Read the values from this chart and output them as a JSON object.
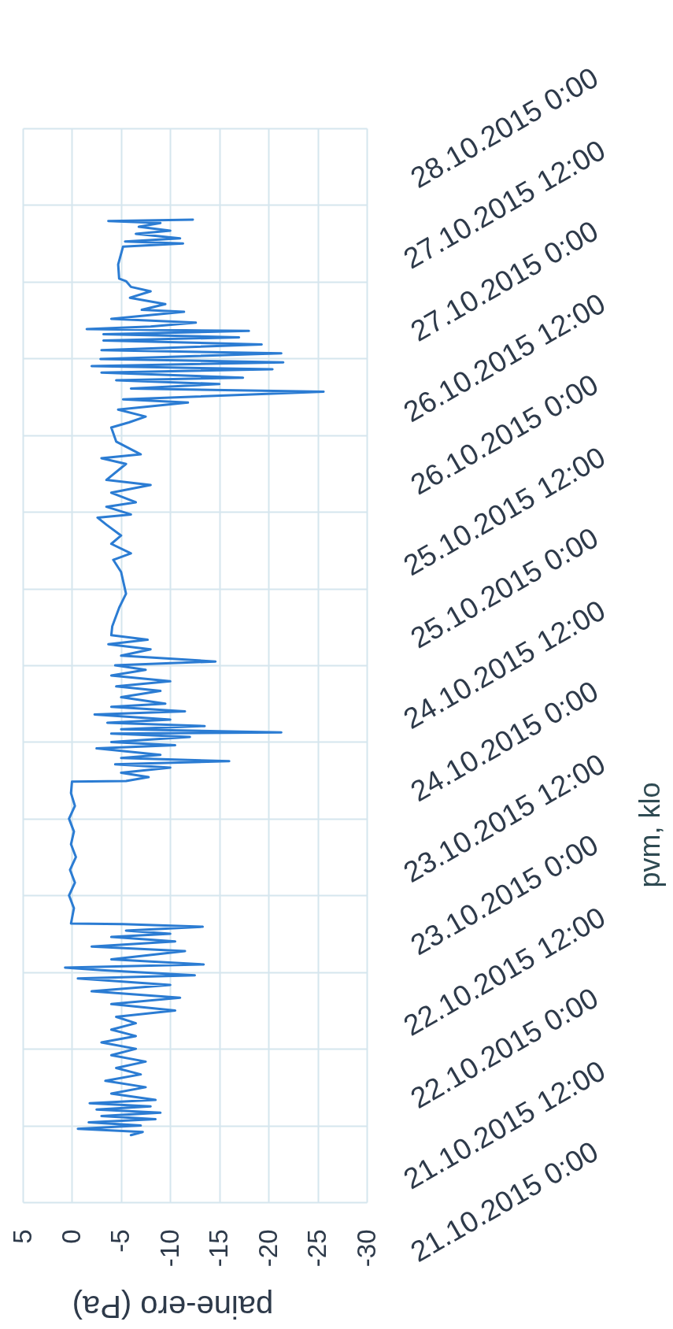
{
  "chart_data": {
    "type": "line",
    "orientation": "horizontal",
    "xlabel": "paine-ero (Pa)",
    "ylabel": "pvm, klo",
    "ylim": [
      "2015-10-21T00:00",
      "2015-10-28T00:00"
    ],
    "yticks": [
      {
        "value": "2015-10-21T00:00",
        "label": "21.10.2015 0:00"
      },
      {
        "value": "2015-10-21T12:00",
        "label": "21.10.2015 12:00"
      },
      {
        "value": "2015-10-22T00:00",
        "label": "22.10.2015 0:00"
      },
      {
        "value": "2015-10-22T12:00",
        "label": "22.10.2015 12:00"
      },
      {
        "value": "2015-10-23T00:00",
        "label": "23.10.2015 0:00"
      },
      {
        "value": "2015-10-23T12:00",
        "label": "23.10.2015 12:00"
      },
      {
        "value": "2015-10-24T00:00",
        "label": "24.10.2015 0:00"
      },
      {
        "value": "2015-10-24T12:00",
        "label": "24.10.2015 12:00"
      },
      {
        "value": "2015-10-25T00:00",
        "label": "25.10.2015 0:00"
      },
      {
        "value": "2015-10-25T12:00",
        "label": "25.10.2015 12:00"
      },
      {
        "value": "2015-10-26T00:00",
        "label": "26.10.2015 0:00"
      },
      {
        "value": "2015-10-26T12:00",
        "label": "26.10.2015 12:00"
      },
      {
        "value": "2015-10-27T00:00",
        "label": "27.10.2015 0:00"
      },
      {
        "value": "2015-10-27T12:00",
        "label": "27.10.2015 12:00"
      },
      {
        "value": "2015-10-28T00:00",
        "label": "28.10.2015 0:00"
      }
    ],
    "xlim": [
      5,
      -30
    ],
    "xticks": [
      5,
      0,
      -5,
      -10,
      -15,
      -20,
      -25,
      -30
    ],
    "grid": true,
    "x": [
      "2015-10-21T10:30",
      "2015-10-21T11:00",
      "2015-10-21T11:30",
      "2015-10-21T12:00",
      "2015-10-21T12:30",
      "2015-10-21T13:00",
      "2015-10-21T13:30",
      "2015-10-21T14:00",
      "2015-10-21T14:30",
      "2015-10-21T15:00",
      "2015-10-21T15:30",
      "2015-10-21T16:00",
      "2015-10-21T17:00",
      "2015-10-21T18:00",
      "2015-10-21T19:00",
      "2015-10-21T20:00",
      "2015-10-21T21:00",
      "2015-10-21T22:00",
      "2015-10-21T23:00",
      "2015-10-22T00:00",
      "2015-10-22T01:00",
      "2015-10-22T02:00",
      "2015-10-22T03:00",
      "2015-10-22T04:00",
      "2015-10-22T05:00",
      "2015-10-22T06:00",
      "2015-10-22T07:00",
      "2015-10-22T08:00",
      "2015-10-22T09:00",
      "2015-10-22T10:00",
      "2015-10-22T11:00",
      "2015-10-22T11:30",
      "2015-10-22T12:18",
      "2015-10-22T12:42",
      "2015-10-22T13:12",
      "2015-10-22T14:00",
      "2015-10-22T15:18",
      "2015-10-22T16:00",
      "2015-10-22T16:48",
      "2015-10-22T17:30",
      "2015-10-22T18:00",
      "2015-10-22T18:30",
      "2015-10-22T19:06",
      "2015-10-22T19:30",
      "2015-10-22T19:36",
      "2015-10-22T22:00",
      "2015-10-23T00:00",
      "2015-10-23T02:00",
      "2015-10-23T04:00",
      "2015-10-23T06:00",
      "2015-10-23T08:00",
      "2015-10-23T10:00",
      "2015-10-23T12:00",
      "2015-10-23T14:00",
      "2015-10-23T16:00",
      "2015-10-23T17:48",
      "2015-10-23T17:54",
      "2015-10-23T18:30",
      "2015-10-23T19:12",
      "2015-10-23T20:00",
      "2015-10-23T20:30",
      "2015-10-23T21:00",
      "2015-10-23T21:30",
      "2015-10-23T22:00",
      "2015-10-23T23:00",
      "2015-10-23T23:30",
      "2015-10-24T00:00",
      "2015-10-24T00:48",
      "2015-10-24T01:18",
      "2015-10-24T01:30",
      "2015-10-24T02:00",
      "2015-10-24T02:30",
      "2015-10-24T03:00",
      "2015-10-24T03:30",
      "2015-10-24T04:18",
      "2015-10-24T04:48",
      "2015-10-24T05:30",
      "2015-10-24T06:00",
      "2015-10-24T07:00",
      "2015-10-24T08:00",
      "2015-10-24T08:42",
      "2015-10-24T09:30",
      "2015-10-24T10:24",
      "2015-10-24T11:18",
      "2015-10-24T12:00",
      "2015-10-24T12:36",
      "2015-10-24T13:30",
      "2015-10-24T14:30",
      "2015-10-24T15:18",
      "2015-10-24T16:00",
      "2015-10-24T16:42",
      "2015-10-24T18:06",
      "2015-10-24T21:00",
      "2015-10-24T23:12",
      "2015-10-25T02:36",
      "2015-10-25T04:30",
      "2015-10-25T05:30",
      "2015-10-25T07:00",
      "2015-10-25T08:18",
      "2015-10-25T10:00",
      "2015-10-25T11:06",
      "2015-10-25T11:36",
      "2015-10-25T12:48",
      "2015-10-25T13:30",
      "2015-10-25T15:00",
      "2015-10-25T16:12",
      "2015-10-25T17:00",
      "2015-10-25T19:30",
      "2015-10-25T20:24",
      "2015-10-25T21:00",
      "2015-10-25T23:00",
      "2015-10-26T01:12",
      "2015-10-26T02:00",
      "2015-10-26T02:54",
      "2015-10-26T04:00",
      "2015-10-26T05:06",
      "2015-10-26T05:36",
      "2015-10-26T06:48",
      "2015-10-26T07:18",
      "2015-10-26T08:00",
      "2015-10-26T08:36",
      "2015-10-26T09:00",
      "2015-10-26T09:48",
      "2015-10-26T10:18",
      "2015-10-26T10:48",
      "2015-10-26T11:24",
      "2015-10-26T11:54",
      "2015-10-26T12:48",
      "2015-10-26T13:18",
      "2015-10-26T14:12",
      "2015-10-26T14:48",
      "2015-10-26T15:18",
      "2015-10-26T15:48",
      "2015-10-26T16:18",
      "2015-10-26T16:36",
      "2015-10-26T17:00",
      "2015-10-26T17:36",
      "2015-10-26T18:12",
      "2015-10-26T19:18",
      "2015-10-26T19:36",
      "2015-10-26T20:30",
      "2015-10-26T21:30",
      "2015-10-26T22:30",
      "2015-10-26T23:12",
      "2015-10-27T00:06",
      "2015-10-27T00:30",
      "2015-10-27T02:42",
      "2015-10-27T05:30",
      "2015-10-27T06:00",
      "2015-10-27T06:18",
      "2015-10-27T06:48",
      "2015-10-27T07:30",
      "2015-10-27T08:00",
      "2015-10-27T08:36",
      "2015-10-27T09:12",
      "2015-10-27T09:30",
      "2015-10-27T09:42"
    ],
    "series": [
      {
        "color": "#2b7cd3",
        "values": [
          -6,
          -7.2,
          -0.6,
          -7,
          -1.7,
          -8.5,
          -3,
          -9,
          -2.5,
          -8,
          -1.8,
          -8.5,
          -4,
          -7.5,
          -3.4,
          -7,
          -4.5,
          -7.5,
          -4,
          -6.5,
          -3,
          -6.5,
          -4,
          -6.5,
          -4.5,
          -10.5,
          -4,
          -11,
          -2,
          -10,
          -0.6,
          -12.5,
          -3,
          0.7,
          -13.4,
          -4,
          -11.5,
          -2,
          -10.5,
          -4,
          -10,
          -5.5,
          -13.3,
          -5.2,
          0.1,
          -0.2,
          0.3,
          -0.3,
          0.2,
          -0.4,
          0.1,
          -0.2,
          0.3,
          -0.3,
          0.1,
          0,
          -5.5,
          -7.8,
          -5,
          -10,
          -4.4,
          -16,
          -5,
          -9,
          -2.5,
          -10.5,
          -4,
          -12,
          -4,
          -21.3,
          -5,
          -13.5,
          -3.6,
          -10,
          -2.3,
          -11.5,
          -4,
          -9.5,
          -5,
          -9,
          -4.5,
          -10,
          -4,
          -7.5,
          -4.4,
          -14.6,
          -5,
          -8,
          -3.7,
          -7.7,
          -4,
          -4.1,
          -4.8,
          -5.5,
          -5,
          -4.2,
          -6,
          -4,
          -5,
          -3.5,
          -2.6,
          -6,
          -3.5,
          -6.5,
          -4,
          -8,
          -3.5,
          -5.5,
          -3,
          -7,
          -4.5,
          -4,
          -5.8,
          -7.5,
          -4.7,
          -11.8,
          -5.2,
          -25.6,
          -6,
          -15,
          -4.5,
          -17.4,
          -3,
          -20.4,
          -2,
          -21.5,
          -2.9,
          -21.3,
          -3,
          -19.3,
          -3.2,
          -17,
          -3.2,
          -18,
          -1.5,
          -8,
          -12.6,
          -4,
          -11.4,
          -7.1,
          -9.5,
          -5.9,
          -8,
          -6,
          -5.5,
          -4.8,
          -4.7,
          -5.2,
          -11.3,
          -5.4,
          -11,
          -6.5,
          -10,
          -6.8,
          -9,
          -3.7,
          -12.3
        ]
      }
    ]
  }
}
